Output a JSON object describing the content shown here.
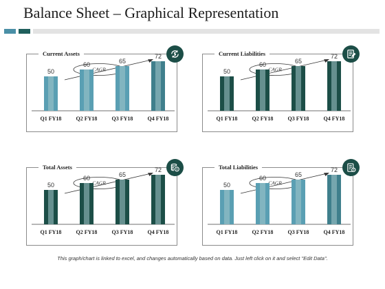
{
  "title": "Balance Sheet – Graphical Representation",
  "colors": {
    "dark_green": "#1c4e47",
    "mid_teal": "#4a8fa6",
    "light_teal": "#5aa0b4",
    "stripe": "#9fc2c6"
  },
  "chart_data": [
    {
      "type": "bar",
      "title": "Current Assets",
      "icon": "refresh-dollar-icon",
      "annotation": "CAGR",
      "categories": [
        "Q1 FY18",
        "Q2 FY18",
        "Q3 FY18",
        "Q4 FY18"
      ],
      "values": [
        50,
        60,
        65,
        72
      ],
      "bar_colors": [
        "#5a9fb3",
        "#5a9fb3",
        "#5a9fb3",
        "#3f7f8c"
      ],
      "ylim": [
        0,
        100
      ]
    },
    {
      "type": "bar",
      "title": "Current Liabilities",
      "icon": "report-icon",
      "annotation": "CAGR",
      "categories": [
        "Q1 FY18",
        "Q2 FY18",
        "Q3 FY18",
        "Q4 FY18"
      ],
      "values": [
        50,
        60,
        65,
        72
      ],
      "bar_colors": [
        "#1c4e47",
        "#1c4e47",
        "#1c4e47",
        "#1c4e47"
      ],
      "ylim": [
        0,
        100
      ]
    },
    {
      "type": "bar",
      "title": "Total Assets",
      "icon": "coins-icon",
      "annotation": "CAGR",
      "categories": [
        "Q1 FY18",
        "Q2 FY18",
        "Q3 FY18",
        "Q4 FY18"
      ],
      "values": [
        50,
        60,
        65,
        72
      ],
      "bar_colors": [
        "#1c4e47",
        "#1c4e47",
        "#1c4e47",
        "#1c4e47"
      ],
      "ylim": [
        0,
        100
      ]
    },
    {
      "type": "bar",
      "title": "Total Liabilities",
      "icon": "ledger-dollar-icon",
      "annotation": "CAGR",
      "categories": [
        "Q1 FY18",
        "Q2 FY18",
        "Q3 FY18",
        "Q4 FY18"
      ],
      "values": [
        50,
        60,
        65,
        72
      ],
      "bar_colors": [
        "#5a9fb3",
        "#5a9fb3",
        "#5a9fb3",
        "#3f7f8c"
      ],
      "ylim": [
        0,
        100
      ]
    }
  ],
  "footnote": "This graph/chart is linked to excel, and changes automatically based on data. Just left click on it and select \"Edit Data\"."
}
